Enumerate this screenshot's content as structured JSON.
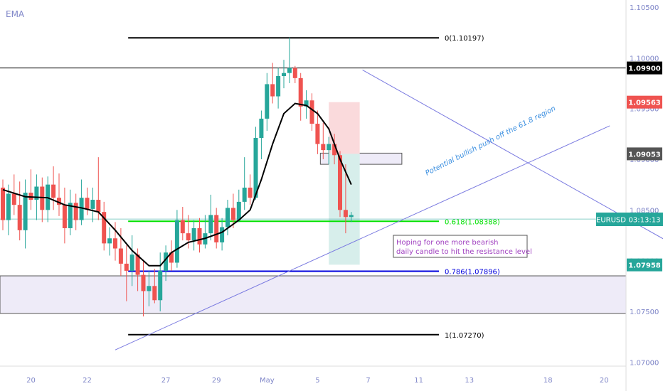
{
  "app": {
    "indicator_label": "EMA",
    "symbol_label": "EURUSD",
    "countdown": "03:13:13"
  },
  "chart_data": {
    "type": "candlestick",
    "y_axis": {
      "range": [
        1.0696,
        1.1057
      ],
      "ticks": [
        1.07,
        1.075,
        1.08,
        1.085,
        1.09,
        1.095,
        1.1,
        1.105
      ],
      "tick_labels": [
        "1.07000",
        "1.07500",
        "1.08000",
        "1.08500",
        "1.09000",
        "1.09500",
        "1.10000",
        "1.10500"
      ]
    },
    "x_axis": {
      "ticks": [
        {
          "label": "20",
          "bar": 5
        },
        {
          "label": "22",
          "bar": 15
        },
        {
          "label": "27",
          "bar": 29
        },
        {
          "label": "29",
          "bar": 38
        },
        {
          "label": "May",
          "bar": 47
        },
        {
          "label": "5",
          "bar": 56
        },
        {
          "label": "7",
          "bar": 65
        },
        {
          "label": "11",
          "bar": 74
        },
        {
          "label": "13",
          "bar": 83
        },
        {
          "label": "18",
          "bar": 97
        },
        {
          "label": "20",
          "bar": 107
        }
      ]
    },
    "bar_count": 109,
    "candles": [
      [
        1.0872,
        1.088,
        1.083,
        1.084
      ],
      [
        1.084,
        1.0875,
        1.0825,
        1.0866
      ],
      [
        1.0866,
        1.0885,
        1.0845,
        1.0855
      ],
      [
        1.0855,
        1.0878,
        1.082,
        1.083
      ],
      [
        1.083,
        1.088,
        1.0812,
        1.0867
      ],
      [
        1.0867,
        1.089,
        1.085,
        1.086
      ],
      [
        1.086,
        1.0885,
        1.084,
        1.0873
      ],
      [
        1.0873,
        1.0882,
        1.0838,
        1.085
      ],
      [
        1.085,
        1.0883,
        1.0838,
        1.0875
      ],
      [
        1.0875,
        1.0893,
        1.085,
        1.0862
      ],
      [
        1.0862,
        1.0886,
        1.0844,
        1.0855
      ],
      [
        1.0855,
        1.0872,
        1.0817,
        1.0832
      ],
      [
        1.0832,
        1.087,
        1.0825,
        1.0857
      ],
      [
        1.0857,
        1.0866,
        1.083,
        1.084
      ],
      [
        1.084,
        1.088,
        1.0835,
        1.0862
      ],
      [
        1.0862,
        1.0872,
        1.0845,
        1.0851
      ],
      [
        1.0851,
        1.0872,
        1.0838,
        1.086
      ],
      [
        1.086,
        1.0902,
        1.084,
        1.0848
      ],
      [
        1.0848,
        1.0858,
        1.081,
        1.0817
      ],
      [
        1.0817,
        1.0833,
        1.0805,
        1.0822
      ],
      [
        1.0822,
        1.0838,
        1.08,
        1.0812
      ],
      [
        1.0812,
        1.0832,
        1.0785,
        1.0797
      ],
      [
        1.0797,
        1.0815,
        1.076,
        1.079
      ],
      [
        1.079,
        1.0825,
        1.0775,
        1.0806
      ],
      [
        1.0806,
        1.0812,
        1.077,
        1.0786
      ],
      [
        1.0786,
        1.08,
        1.0745,
        1.077
      ],
      [
        1.077,
        1.079,
        1.0755,
        1.0775
      ],
      [
        1.0775,
        1.0792,
        1.0758,
        1.0761
      ],
      [
        1.0761,
        1.0808,
        1.075,
        1.079
      ],
      [
        1.079,
        1.0815,
        1.078,
        1.0808
      ],
      [
        1.0808,
        1.082,
        1.079,
        1.0798
      ],
      [
        1.0798,
        1.085,
        1.0793,
        1.084
      ],
      [
        1.084,
        1.0853,
        1.082,
        1.0827
      ],
      [
        1.0827,
        1.0845,
        1.0812,
        1.082
      ],
      [
        1.082,
        1.084,
        1.081,
        1.0832
      ],
      [
        1.0832,
        1.0842,
        1.0808,
        1.0816
      ],
      [
        1.0816,
        1.0845,
        1.0812,
        1.0827
      ],
      [
        1.0827,
        1.0865,
        1.082,
        1.0845
      ],
      [
        1.0845,
        1.0852,
        1.0812,
        1.0818
      ],
      [
        1.0818,
        1.0842,
        1.081,
        1.0833
      ],
      [
        1.0833,
        1.086,
        1.0825,
        1.0852
      ],
      [
        1.0852,
        1.0866,
        1.0832,
        1.084
      ],
      [
        1.084,
        1.087,
        1.0838,
        1.0858
      ],
      [
        1.0858,
        1.0902,
        1.085,
        1.0872
      ],
      [
        1.0872,
        1.0885,
        1.0855,
        1.0862
      ],
      [
        1.0862,
        1.0932,
        1.086,
        1.0921
      ],
      [
        1.0921,
        1.0948,
        1.09,
        1.094
      ],
      [
        1.094,
        1.0985,
        1.0928,
        1.0974
      ],
      [
        1.0974,
        1.0995,
        1.0955,
        1.0962
      ],
      [
        1.0962,
        1.099,
        1.095,
        1.0982
      ],
      [
        1.0982,
        1.0998,
        1.097,
        1.0985
      ],
      [
        1.0985,
        1.102,
        1.0975,
        1.099
      ],
      [
        1.099,
        1.0992,
        1.0975,
        1.098
      ],
      [
        1.098,
        1.0985,
        1.0938,
        1.0952
      ],
      [
        1.0952,
        1.0968,
        1.094,
        1.0958
      ],
      [
        1.0958,
        1.0965,
        1.0928,
        1.0935
      ],
      [
        1.0935,
        1.0948,
        1.0905,
        1.0915
      ],
      [
        1.0915,
        1.0936,
        1.09,
        1.0909
      ],
      [
        1.0909,
        1.0922,
        1.0895,
        1.0915
      ],
      [
        1.0915,
        1.0925,
        1.0895,
        1.0904
      ],
      [
        1.0904,
        1.0908,
        1.0843,
        1.085
      ],
      [
        1.085,
        1.0895,
        1.0827,
        1.0843
      ],
      [
        1.0843,
        1.0848,
        1.0838,
        1.0845
      ]
    ],
    "ema": [
      [
        0,
        1.087
      ],
      [
        4,
        1.0863
      ],
      [
        8,
        1.0862
      ],
      [
        11,
        1.0855
      ],
      [
        14,
        1.0852
      ],
      [
        17,
        1.0848
      ],
      [
        20,
        1.083
      ],
      [
        23,
        1.081
      ],
      [
        26,
        1.0795
      ],
      [
        28,
        1.0795
      ],
      [
        30,
        1.0808
      ],
      [
        33,
        1.0818
      ],
      [
        36,
        1.0822
      ],
      [
        39,
        1.0828
      ],
      [
        42,
        1.084
      ],
      [
        44,
        1.085
      ],
      [
        46,
        1.088
      ],
      [
        48,
        1.0915
      ],
      [
        50,
        1.0945
      ],
      [
        52,
        1.0955
      ],
      [
        54,
        1.0953
      ],
      [
        56,
        1.0945
      ],
      [
        58,
        1.093
      ],
      [
        60,
        1.09
      ],
      [
        62,
        1.0875
      ]
    ],
    "fibonacci": [
      {
        "ratio": "0",
        "value": 1.10197,
        "label": "0(1.10197)",
        "color": "#000000"
      },
      {
        "ratio": "0.618",
        "value": 1.08388,
        "label": "0.618(1.08388)",
        "color": "#00e000"
      },
      {
        "ratio": "0.786",
        "value": 1.07896,
        "label": "0.786(1.07896)",
        "color": "#0000dd"
      },
      {
        "ratio": "1",
        "value": 1.0727,
        "label": "1(1.07270)",
        "color": "#000000"
      }
    ],
    "horizontal_lines": [
      {
        "value": 1.099,
        "label": "1.09900"
      },
      {
        "value": 1.0785
      },
      {
        "value": 1.0748
      }
    ],
    "zones": [
      {
        "name": "support-zone",
        "y1": 1.0785,
        "y2": 1.0748,
        "from_bar": 0,
        "to_bar": 109
      },
      {
        "name": "resistance-box",
        "y1": 1.0906,
        "y2": 1.0895,
        "from_bar": 56.5,
        "to_bar": 71
      }
    ],
    "position": {
      "entry": 1.09053,
      "stop": 1.09563,
      "target": 1.0796,
      "from_bar": 58,
      "to_bar": 63.5
    },
    "trendlines": [
      {
        "name": "rising-trendline",
        "from": [
          20,
          1.0712
        ],
        "to": [
          108,
          1.0933
        ],
        "color": "#7a7ae0"
      },
      {
        "name": "falling-trendline",
        "from": [
          64,
          1.0988
        ],
        "to": [
          127,
          1.0792
        ],
        "color": "#7a7ae0"
      }
    ],
    "annotations": {
      "trend_text": "Potential bullish push off the 61.8 region",
      "note_text": "Hoping for one more bearish daily candle to hit the resistance level"
    },
    "price_tags": [
      {
        "value": 1.099,
        "text": "1.09900",
        "bg": "#000000",
        "fg": "#ffffff"
      },
      {
        "value": 1.09563,
        "text": "1.09563",
        "bg": "#ef5350",
        "fg": "#ffffff"
      },
      {
        "value": 1.09053,
        "text": "1.09053",
        "bg": "#555555",
        "fg": "#ffffff"
      },
      {
        "value": 1.07958,
        "text": "1.07958",
        "bg": "#26a69a",
        "fg": "#ffffff"
      }
    ],
    "current_price": 1.0841,
    "colors": {
      "up": "#26a69a",
      "down": "#ef5350",
      "axis_text": "#7f86c8",
      "ema": "#000000",
      "stop_zone": "#fadadc",
      "target_zone": "#d7eeeb"
    }
  }
}
